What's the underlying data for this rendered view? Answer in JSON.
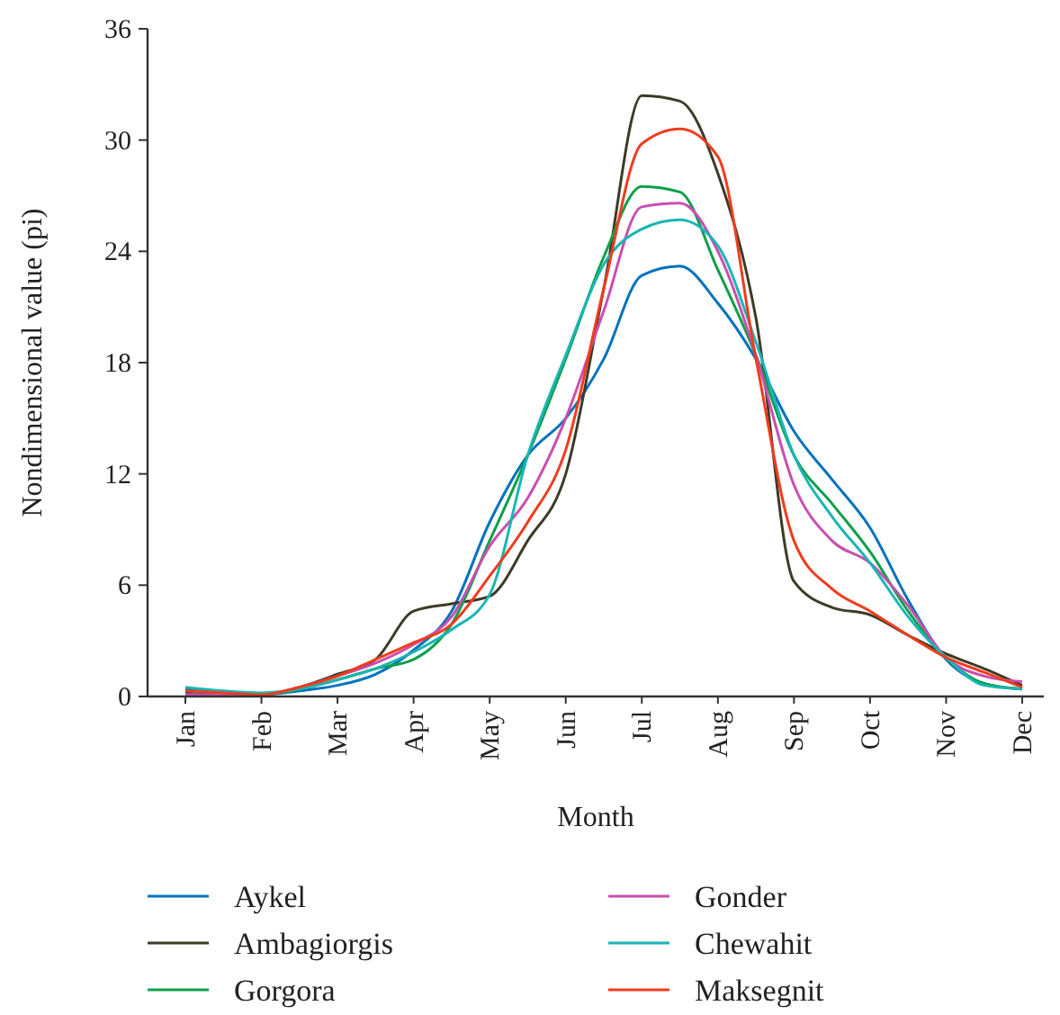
{
  "chart_data": {
    "type": "line",
    "xlabel": "Month",
    "ylabel": "Nondimensional value (pi)",
    "categories": [
      "Jan",
      null,
      "Feb",
      null,
      "Mar",
      null,
      "Apr",
      null,
      "May",
      null,
      "Jun",
      null,
      "Jul",
      null,
      "Aug",
      null,
      "Sep",
      null,
      "Oct",
      null,
      "Nov",
      null,
      "Dec"
    ],
    "ylim": [
      0,
      36
    ],
    "yticks": [
      0,
      6,
      12,
      18,
      24,
      30,
      36
    ],
    "legend": "bottom",
    "marker": "none",
    "line_style": "solid",
    "grid": false,
    "series": [
      {
        "name": "Aykel",
        "color": "#0072bd",
        "values": [
          0.4,
          0.2,
          0.1,
          0.3,
          0.6,
          1.2,
          2.5,
          4.6,
          9.4,
          13,
          15,
          18.2,
          22.7,
          23.2,
          21.2,
          18.2,
          14.3,
          11.7,
          9.1,
          5.2,
          2,
          0.7,
          0.4
        ]
      },
      {
        "name": "Ambagiorgis",
        "color": "#3d3a27",
        "values": [
          0.2,
          0.1,
          0.1,
          0.5,
          1.2,
          2,
          4.6,
          5,
          5.4,
          8.4,
          12,
          22,
          32.4,
          32.1,
          28.2,
          20.4,
          6.2,
          4.8,
          4.4,
          3.3,
          2.3,
          1.5,
          0.6
        ]
      },
      {
        "name": "Gorgora",
        "color": "#0ca04a",
        "values": [
          0.1,
          0.1,
          0.1,
          0.4,
          0.9,
          1.5,
          2,
          3.9,
          8.4,
          13,
          18.2,
          23.7,
          27.5,
          27.2,
          23,
          18.4,
          13,
          10.4,
          7.8,
          4.6,
          2.1,
          0.7,
          0.4
        ]
      },
      {
        "name": "Gonder",
        "color": "#c84fb0",
        "values": [
          0.1,
          0.1,
          0.1,
          0.5,
          1.1,
          1.8,
          2.8,
          4.3,
          8.1,
          10.7,
          15,
          20.8,
          26.4,
          26.6,
          24,
          18.4,
          11.4,
          8.4,
          7.2,
          4.9,
          2.1,
          1.1,
          0.8
        ]
      },
      {
        "name": "Chewahit",
        "color": "#1bb5b5",
        "values": [
          0.5,
          0.3,
          0.2,
          0.4,
          0.9,
          1.5,
          2.4,
          3.6,
          5.5,
          13,
          18.4,
          23.3,
          25.2,
          25.7,
          24.3,
          19.1,
          13,
          9.7,
          7.2,
          4.3,
          2.1,
          0.6,
          0.4
        ]
      },
      {
        "name": "Maksegnit",
        "color": "#f03c1e",
        "values": [
          0.3,
          0.2,
          0.1,
          0.5,
          1.1,
          2,
          2.9,
          3.9,
          6.5,
          9.4,
          13.3,
          22,
          29.8,
          30.6,
          29.1,
          18.2,
          8.4,
          5.8,
          4.6,
          3.3,
          2.1,
          1.3,
          0.5
        ]
      }
    ]
  }
}
